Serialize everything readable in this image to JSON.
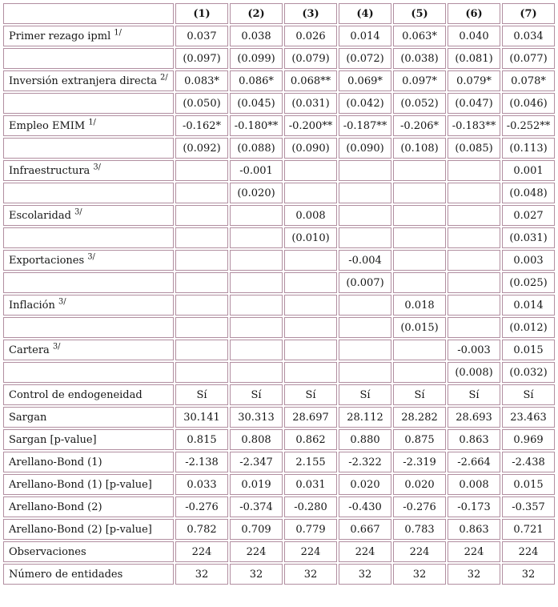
{
  "colors": {
    "border": "#b18ea0",
    "text": "#151515",
    "background": "#ffffff"
  },
  "table": {
    "columns": [
      "",
      "(1)",
      "(2)",
      "(3)",
      "(4)",
      "(5)",
      "(6)",
      "(7)"
    ],
    "rows": [
      {
        "label": "Primer rezago ipml",
        "sup": "1/",
        "values": [
          "0.037",
          "0.038",
          "0.026",
          "0.014",
          "0.063*",
          "0.040",
          "0.034"
        ]
      },
      {
        "label": "",
        "sup": "",
        "values": [
          "(0.097)",
          "(0.099)",
          "(0.079)",
          "(0.072)",
          "(0.038)",
          "(0.081)",
          "(0.077)"
        ]
      },
      {
        "label": "Inversión extranjera directa",
        "sup": "2/",
        "values": [
          "0.083*",
          "0.086*",
          "0.068**",
          "0.069*",
          "0.097*",
          "0.079*",
          "0.078*"
        ]
      },
      {
        "label": "",
        "sup": "",
        "values": [
          "(0.050)",
          "(0.045)",
          "(0.031)",
          "(0.042)",
          "(0.052)",
          "(0.047)",
          "(0.046)"
        ]
      },
      {
        "label": "Empleo EMIM",
        "sup": "1/",
        "values": [
          "-0.162*",
          "-0.180**",
          "-0.200**",
          "-0.187**",
          "-0.206*",
          "-0.183**",
          "-0.252**"
        ]
      },
      {
        "label": "",
        "sup": "",
        "values": [
          "(0.092)",
          "(0.088)",
          "(0.090)",
          "(0.090)",
          "(0.108)",
          "(0.085)",
          "(0.113)"
        ]
      },
      {
        "label": "Infraestructura",
        "sup": "3/",
        "values": [
          "",
          "-0.001",
          "",
          "",
          "",
          "",
          "0.001"
        ]
      },
      {
        "label": "",
        "sup": "",
        "values": [
          "",
          "(0.020)",
          "",
          "",
          "",
          "",
          "(0.048)"
        ]
      },
      {
        "label": "Escolaridad",
        "sup": "3/",
        "values": [
          "",
          "",
          "0.008",
          "",
          "",
          "",
          "0.027"
        ]
      },
      {
        "label": "",
        "sup": "",
        "values": [
          "",
          "",
          "(0.010)",
          "",
          "",
          "",
          "(0.031)"
        ]
      },
      {
        "label": "Exportaciones",
        "sup": "3/",
        "values": [
          "",
          "",
          "",
          "-0.004",
          "",
          "",
          "0.003"
        ]
      },
      {
        "label": "",
        "sup": "",
        "values": [
          "",
          "",
          "",
          "(0.007)",
          "",
          "",
          "(0.025)"
        ]
      },
      {
        "label": "Inflación",
        "sup": "3/",
        "values": [
          "",
          "",
          "",
          "",
          "0.018",
          "",
          "0.014"
        ]
      },
      {
        "label": "",
        "sup": "",
        "values": [
          "",
          "",
          "",
          "",
          "(0.015)",
          "",
          "(0.012)"
        ]
      },
      {
        "label": "Cartera",
        "sup": "3/",
        "values": [
          "",
          "",
          "",
          "",
          "",
          "-0.003",
          "0.015"
        ]
      },
      {
        "label": "",
        "sup": "",
        "values": [
          "",
          "",
          "",
          "",
          "",
          "(0.008)",
          "(0.032)"
        ]
      },
      {
        "label": "Control de endogeneidad",
        "sup": "",
        "values": [
          "Sí",
          "Sí",
          "Sí",
          "Sí",
          "Sí",
          "Sí",
          "Sí"
        ]
      },
      {
        "label": "Sargan",
        "sup": "",
        "values": [
          "30.141",
          "30.313",
          "28.697",
          "28.112",
          "28.282",
          "28.693",
          "23.463"
        ]
      },
      {
        "label": "Sargan [p-value]",
        "sup": "",
        "values": [
          "0.815",
          "0.808",
          "0.862",
          "0.880",
          "0.875",
          "0.863",
          "0.969"
        ]
      },
      {
        "label": "Arellano-Bond (1)",
        "sup": "",
        "values": [
          "-2.138",
          "-2.347",
          "2.155",
          "-2.322",
          "-2.319",
          "-2.664",
          "-2.438"
        ]
      },
      {
        "label": "Arellano-Bond (1) [p-value]",
        "sup": "",
        "values": [
          "0.033",
          "0.019",
          "0.031",
          "0.020",
          "0.020",
          "0.008",
          "0.015"
        ]
      },
      {
        "label": "Arellano-Bond (2)",
        "sup": "",
        "values": [
          "-0.276",
          "-0.374",
          "-0.280",
          "-0.430",
          "-0.276",
          "-0.173",
          "-0.357"
        ]
      },
      {
        "label": "Arellano-Bond (2) [p-value]",
        "sup": "",
        "values": [
          "0.782",
          "0.709",
          "0.779",
          "0.667",
          "0.783",
          "0.863",
          "0.721"
        ]
      },
      {
        "label": "Observaciones",
        "sup": "",
        "values": [
          "224",
          "224",
          "224",
          "224",
          "224",
          "224",
          "224"
        ]
      },
      {
        "label": "Número de entidades",
        "sup": "",
        "values": [
          "32",
          "32",
          "32",
          "32",
          "32",
          "32",
          "32"
        ]
      }
    ]
  }
}
